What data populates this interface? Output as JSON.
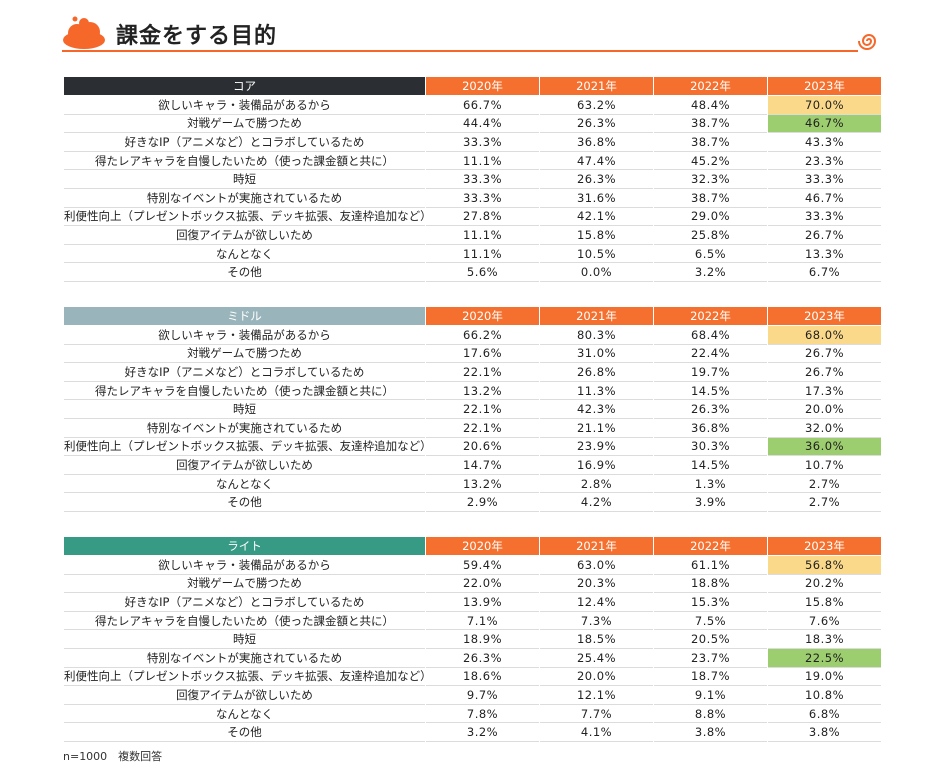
{
  "title": "課金をする目的",
  "years": [
    "2020年",
    "2021年",
    "2022年",
    "2023年"
  ],
  "reasons": [
    "欲しいキャラ・装備品があるから",
    "対戦ゲームで勝つため",
    "好きなIP（アニメなど）とコラボしているため",
    "得たレアキャラを自慢したいため（使った課金額と共に）",
    "時短",
    "特別なイベントが実施されているため",
    "利便性向上（プレゼントボックス拡張、デッキ拡張、友達枠追加など）",
    "回復アイテムが欲しいため",
    "なんとなく",
    "その他"
  ],
  "sections": [
    {
      "name": "コア",
      "rows": [
        [
          "66.7%",
          "63.2%",
          "48.4%",
          "70.0%"
        ],
        [
          "44.4%",
          "26.3%",
          "38.7%",
          "46.7%"
        ],
        [
          "33.3%",
          "36.8%",
          "38.7%",
          "43.3%"
        ],
        [
          "11.1%",
          "47.4%",
          "45.2%",
          "23.3%"
        ],
        [
          "33.3%",
          "26.3%",
          "32.3%",
          "33.3%"
        ],
        [
          "33.3%",
          "31.6%",
          "38.7%",
          "46.7%"
        ],
        [
          "27.8%",
          "42.1%",
          "29.0%",
          "33.3%"
        ],
        [
          "11.1%",
          "15.8%",
          "25.8%",
          "26.7%"
        ],
        [
          "11.1%",
          "10.5%",
          "6.5%",
          "13.3%"
        ],
        [
          "5.6%",
          "0.0%",
          "3.2%",
          "6.7%"
        ]
      ],
      "highlight_yellow_row": 0,
      "highlight_green_row": 1
    },
    {
      "name": "ミドル",
      "rows": [
        [
          "66.2%",
          "80.3%",
          "68.4%",
          "68.0%"
        ],
        [
          "17.6%",
          "31.0%",
          "22.4%",
          "26.7%"
        ],
        [
          "22.1%",
          "26.8%",
          "19.7%",
          "26.7%"
        ],
        [
          "13.2%",
          "11.3%",
          "14.5%",
          "17.3%"
        ],
        [
          "22.1%",
          "42.3%",
          "26.3%",
          "20.0%"
        ],
        [
          "22.1%",
          "21.1%",
          "36.8%",
          "32.0%"
        ],
        [
          "20.6%",
          "23.9%",
          "30.3%",
          "36.0%"
        ],
        [
          "14.7%",
          "16.9%",
          "14.5%",
          "10.7%"
        ],
        [
          "13.2%",
          "2.8%",
          "1.3%",
          "2.7%"
        ],
        [
          "2.9%",
          "4.2%",
          "3.9%",
          "2.7%"
        ]
      ],
      "highlight_yellow_row": 0,
      "highlight_green_row": 6
    },
    {
      "name": "ライト",
      "rows": [
        [
          "59.4%",
          "63.0%",
          "61.1%",
          "56.8%"
        ],
        [
          "22.0%",
          "20.3%",
          "18.8%",
          "20.2%"
        ],
        [
          "13.9%",
          "12.4%",
          "15.3%",
          "15.8%"
        ],
        [
          "7.1%",
          "7.3%",
          "7.5%",
          "7.6%"
        ],
        [
          "18.9%",
          "18.5%",
          "20.5%",
          "18.3%"
        ],
        [
          "26.3%",
          "25.4%",
          "23.7%",
          "22.5%"
        ],
        [
          "18.6%",
          "20.0%",
          "18.7%",
          "19.0%"
        ],
        [
          "9.7%",
          "12.1%",
          "9.1%",
          "10.8%"
        ],
        [
          "7.8%",
          "7.7%",
          "8.8%",
          "6.8%"
        ],
        [
          "3.2%",
          "4.1%",
          "3.8%",
          "3.8%"
        ]
      ],
      "highlight_yellow_row": 0,
      "highlight_green_row": 5
    }
  ],
  "footnote": "n=1000　複数回答",
  "colors": {
    "accent": "#f6672a",
    "core_header": "#2b2f33",
    "middle_header": "#99b5bb",
    "light_header": "#369a85",
    "highlight_yellow": "#fbd98a",
    "highlight_green": "#9ccd6e"
  }
}
